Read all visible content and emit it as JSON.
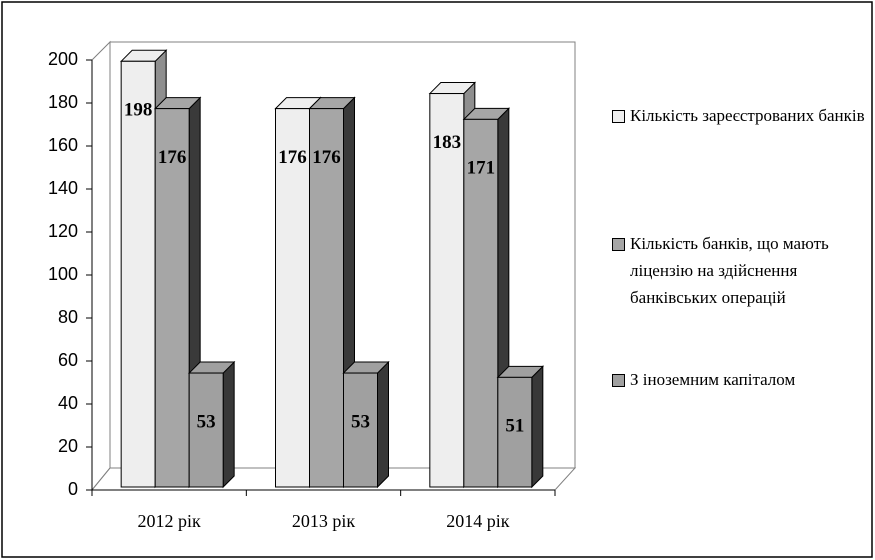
{
  "chart_data": {
    "type": "bar3d",
    "categories": [
      "2012 рік",
      "2013 рік",
      "2014 рік"
    ],
    "series": [
      {
        "name": "Кількість зареєстрованих банків",
        "color": "#eeeeee",
        "values": [
          198,
          176,
          183
        ]
      },
      {
        "name": "Кількість банків, що мають ліцензію на здійснення банківських операцій",
        "color": "#a6a6a6",
        "values": [
          176,
          176,
          171
        ]
      },
      {
        "name": "З іноземним капіталом",
        "color": "#a0a0a0",
        "values": [
          53,
          53,
          51
        ]
      }
    ],
    "ylim": [
      0,
      200
    ],
    "yticks": [
      0,
      20,
      40,
      60,
      80,
      100,
      120,
      140,
      160,
      180,
      200
    ],
    "legend": "right"
  }
}
